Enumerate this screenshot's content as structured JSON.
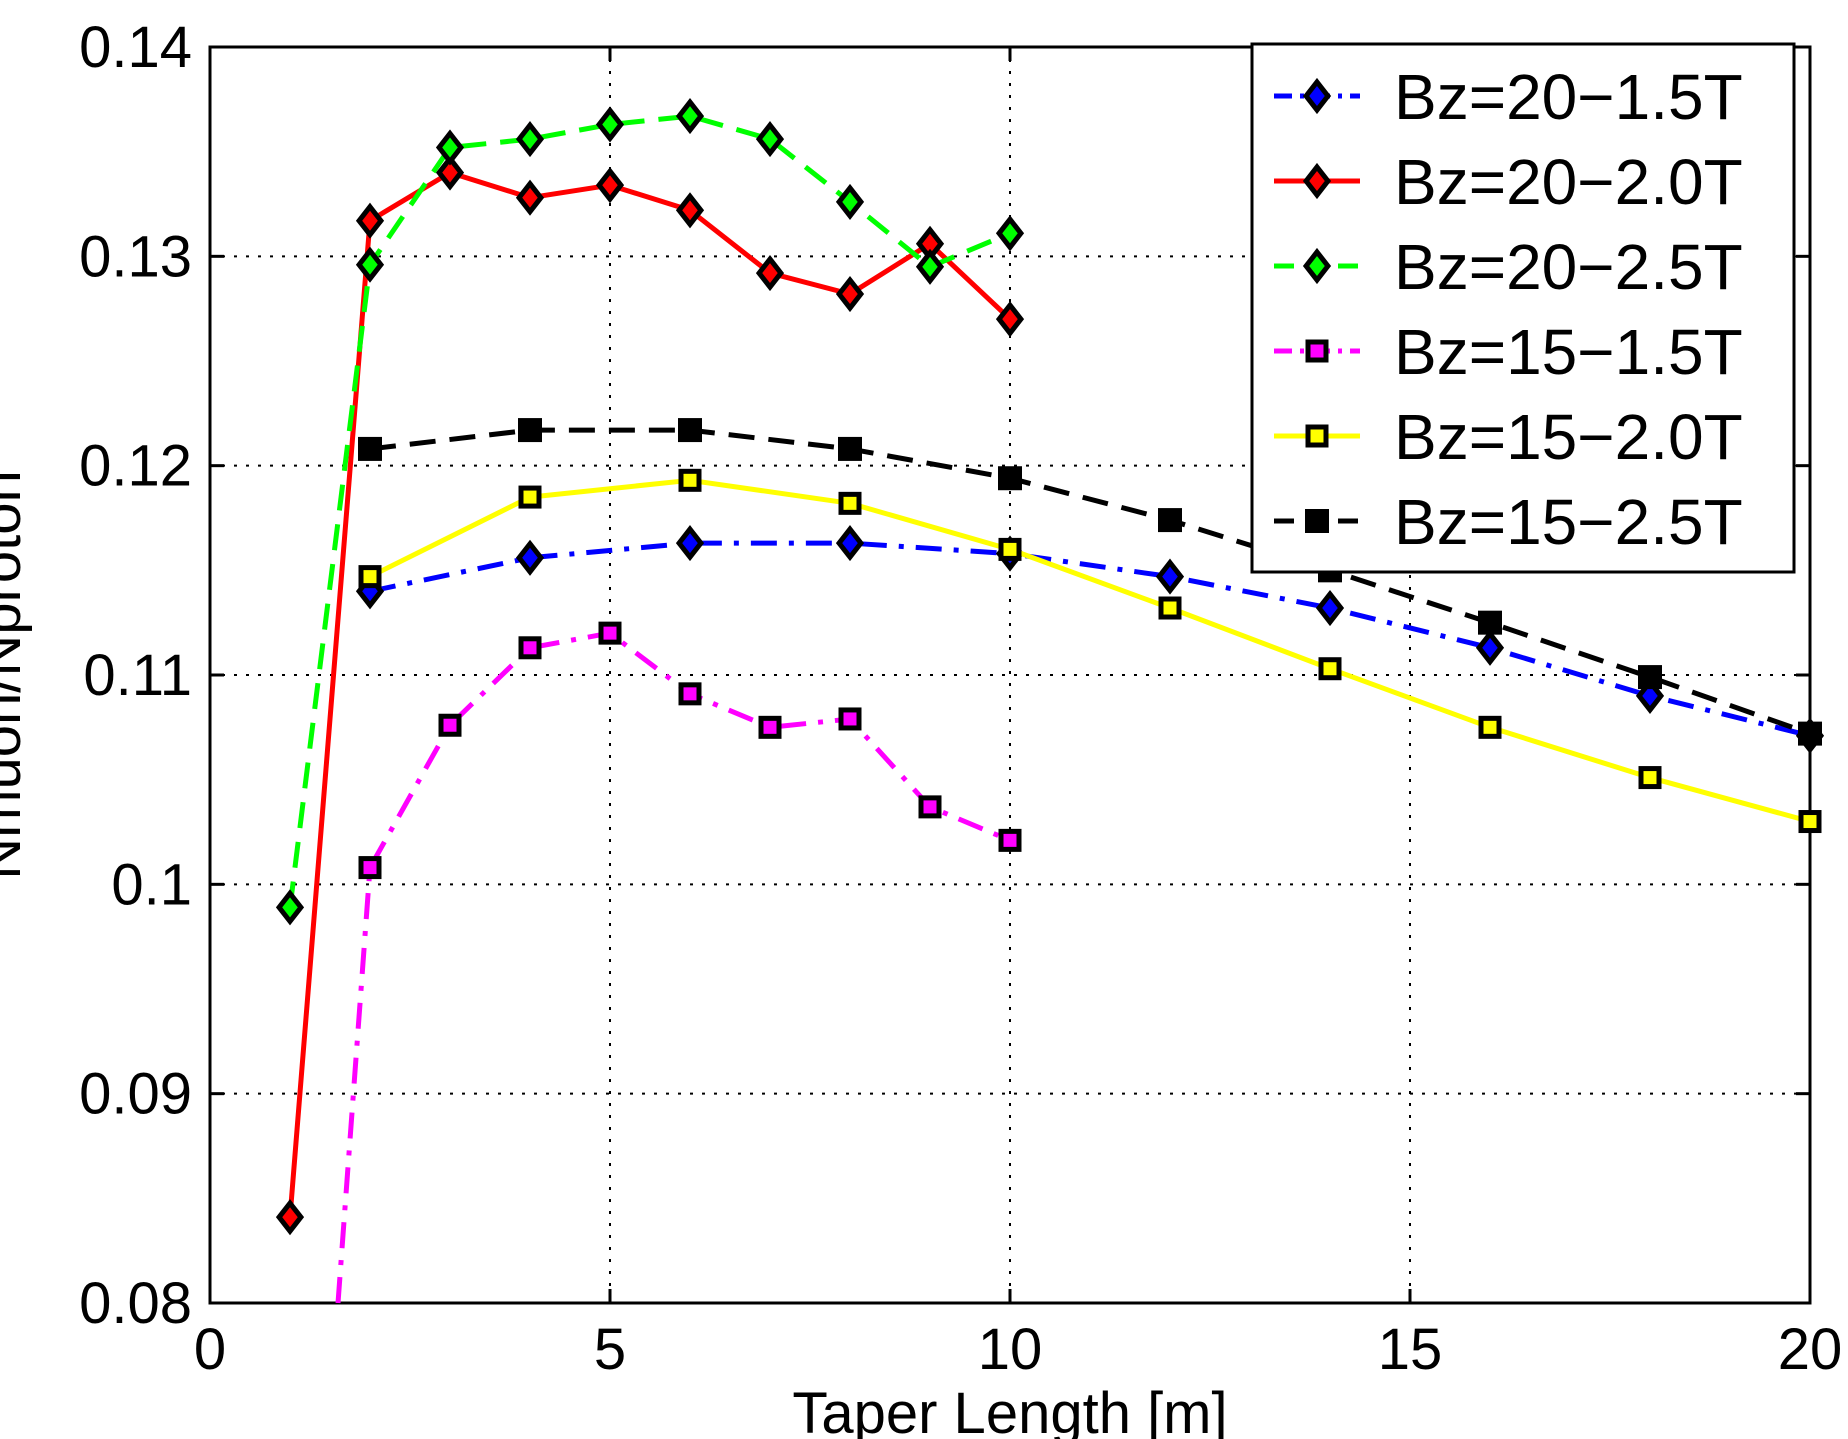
{
  "chart_data": {
    "type": "line",
    "title": "",
    "xlabel": "Taper Length [m]",
    "ylabel": "Nmuon/Nproton",
    "xlim": [
      0,
      20
    ],
    "ylim": [
      0.08,
      0.14
    ],
    "xticks": [
      "0",
      "5",
      "10",
      "15",
      "20"
    ],
    "yticks": [
      "0.08",
      "0.09",
      "0.1",
      "0.11",
      "0.12",
      "0.13",
      "0.14"
    ],
    "grid": true,
    "legend_position": "top-right",
    "series": [
      {
        "name": "Bz=20−1.5T",
        "color": "#0000ff",
        "line": "dashdot",
        "marker": "diamond",
        "x": [
          2,
          4,
          6,
          8,
          10,
          12,
          14,
          16,
          18,
          20
        ],
        "y": [
          0.114,
          0.1156,
          0.1163,
          0.1163,
          0.1158,
          0.1147,
          0.1132,
          0.1113,
          0.109,
          0.1071
        ]
      },
      {
        "name": "Bz=20−2.0T",
        "color": "#ff0000",
        "line": "solid",
        "marker": "diamond",
        "x": [
          1,
          2,
          3,
          4,
          5,
          6,
          7,
          8,
          9,
          10
        ],
        "y": [
          0.0841,
          0.1317,
          0.134,
          0.1328,
          0.1334,
          0.1322,
          0.1292,
          0.1282,
          0.1306,
          0.127
        ]
      },
      {
        "name": "Bz=20−2.5T",
        "color": "#00ff00",
        "line": "dashed",
        "marker": "diamond",
        "x": [
          1,
          2,
          3,
          4,
          5,
          6,
          7,
          8,
          9,
          10
        ],
        "y": [
          0.0989,
          0.1296,
          0.1352,
          0.1356,
          0.1363,
          0.1367,
          0.1356,
          0.1326,
          0.1295,
          0.1311
        ]
      },
      {
        "name": "Bz=15−1.5T",
        "color": "#ff00ff",
        "line": "dashdot",
        "marker": "square",
        "x": [
          1.6,
          2,
          3,
          4,
          5,
          6,
          7,
          8,
          9,
          10
        ],
        "y": [
          0.08,
          0.1008,
          0.1076,
          0.1113,
          0.112,
          0.1091,
          0.1075,
          0.1079,
          0.1037,
          0.1021
        ],
        "marker_skip_first": true
      },
      {
        "name": "Bz=15−2.0T",
        "color": "#ffff00",
        "line": "solid",
        "marker": "square",
        "x": [
          2,
          4,
          6,
          8,
          10,
          12,
          14,
          16,
          18,
          20
        ],
        "y": [
          0.1147,
          0.1185,
          0.1193,
          0.1182,
          0.116,
          0.1132,
          0.1103,
          0.1075,
          0.1051,
          0.103
        ]
      },
      {
        "name": "Bz=15−2.5T",
        "color": "#000000",
        "line": "dashed",
        "marker": "filled-square",
        "x": [
          2,
          4,
          6,
          8,
          10,
          12,
          14,
          16,
          18,
          20
        ],
        "y": [
          0.1208,
          0.1217,
          0.1217,
          0.1208,
          0.1194,
          0.1174,
          0.115,
          0.1125,
          0.1099,
          0.1072
        ]
      }
    ]
  }
}
